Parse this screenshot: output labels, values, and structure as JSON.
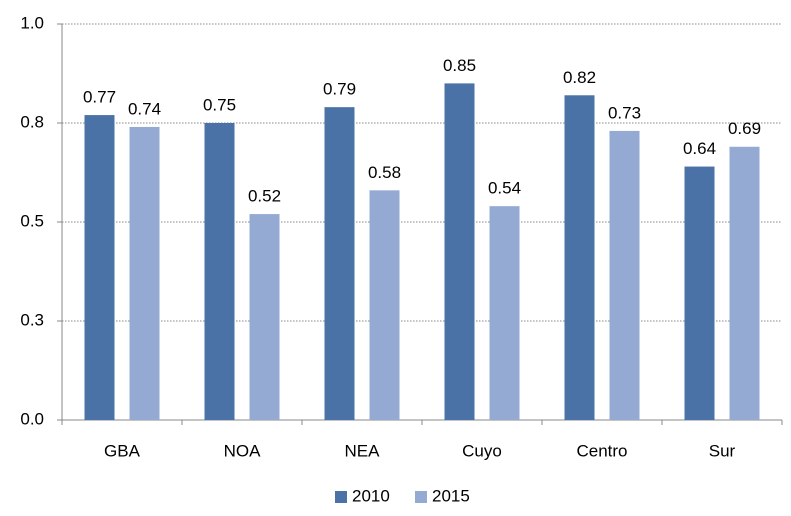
{
  "chart_data": {
    "type": "bar",
    "categories": [
      "GBA",
      "NOA",
      "NEA",
      "Cuyo",
      "Centro",
      "Sur"
    ],
    "series": [
      {
        "name": "2010",
        "color": "#4a72a6",
        "values": [
          0.77,
          0.75,
          0.79,
          0.85,
          0.82,
          0.64
        ]
      },
      {
        "name": "2015",
        "color": "#95aad3",
        "values": [
          0.74,
          0.52,
          0.58,
          0.54,
          0.73,
          0.69
        ]
      }
    ],
    "ylim": [
      0,
      1
    ],
    "yticks": [
      {
        "value": 0,
        "label": "0.0"
      },
      {
        "value": 0.25,
        "label": "0.3"
      },
      0.5,
      {
        "value": 0.75,
        "label": "0.8"
      },
      {
        "value": 1,
        "label": "1.0"
      }
    ],
    "grid": true,
    "legend": "bottom"
  }
}
